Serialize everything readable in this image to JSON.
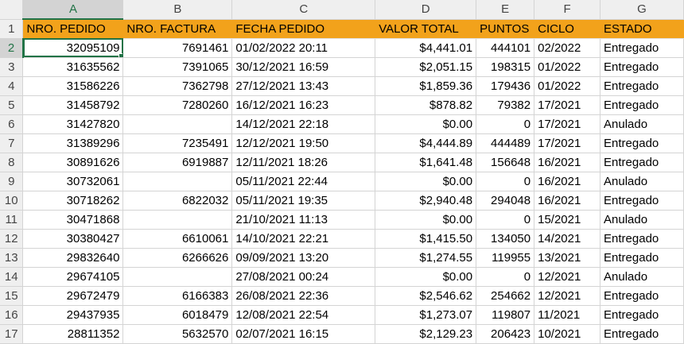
{
  "columns": [
    "A",
    "B",
    "C",
    "D",
    "E",
    "F",
    "G"
  ],
  "header_row": {
    "row_number": "1",
    "cells": [
      "NRO. PEDIDO",
      "NRO. FACTURA",
      "FECHA PEDIDO",
      "VALOR TOTAL",
      "PUNTOS",
      "CICLO",
      "ESTADO"
    ]
  },
  "rows": [
    {
      "n": "2",
      "pedido": "32095109",
      "factura": "7691461",
      "fecha": "01/02/2022 20:11",
      "valor": "$4,441.01",
      "puntos": "444101",
      "ciclo": "02/2022",
      "estado": "Entregado"
    },
    {
      "n": "3",
      "pedido": "31635562",
      "factura": "7391065",
      "fecha": "30/12/2021 16:59",
      "valor": "$2,051.15",
      "puntos": "198315",
      "ciclo": "01/2022",
      "estado": "Entregado"
    },
    {
      "n": "4",
      "pedido": "31586226",
      "factura": "7362798",
      "fecha": "27/12/2021 13:43",
      "valor": "$1,859.36",
      "puntos": "179436",
      "ciclo": "01/2022",
      "estado": "Entregado"
    },
    {
      "n": "5",
      "pedido": "31458792",
      "factura": "7280260",
      "fecha": "16/12/2021 16:23",
      "valor": "$878.82",
      "puntos": "79382",
      "ciclo": "17/2021",
      "estado": "Entregado"
    },
    {
      "n": "6",
      "pedido": "31427820",
      "factura": "",
      "fecha": "14/12/2021 22:18",
      "valor": "$0.00",
      "puntos": "0",
      "ciclo": "17/2021",
      "estado": "Anulado"
    },
    {
      "n": "7",
      "pedido": "31389296",
      "factura": "7235491",
      "fecha": "12/12/2021 19:50",
      "valor": "$4,444.89",
      "puntos": "444489",
      "ciclo": "17/2021",
      "estado": "Entregado"
    },
    {
      "n": "8",
      "pedido": "30891626",
      "factura": "6919887",
      "fecha": "12/11/2021 18:26",
      "valor": "$1,641.48",
      "puntos": "156648",
      "ciclo": "16/2021",
      "estado": "Entregado"
    },
    {
      "n": "9",
      "pedido": "30732061",
      "factura": "",
      "fecha": "05/11/2021 22:44",
      "valor": "$0.00",
      "puntos": "0",
      "ciclo": "16/2021",
      "estado": "Anulado"
    },
    {
      "n": "10",
      "pedido": "30718262",
      "factura": "6822032",
      "fecha": "05/11/2021 19:35",
      "valor": "$2,940.48",
      "puntos": "294048",
      "ciclo": "16/2021",
      "estado": "Entregado"
    },
    {
      "n": "11",
      "pedido": "30471868",
      "factura": "",
      "fecha": "21/10/2021 11:13",
      "valor": "$0.00",
      "puntos": "0",
      "ciclo": "15/2021",
      "estado": "Anulado"
    },
    {
      "n": "12",
      "pedido": "30380427",
      "factura": "6610061",
      "fecha": "14/10/2021 22:21",
      "valor": "$1,415.50",
      "puntos": "134050",
      "ciclo": "14/2021",
      "estado": "Entregado"
    },
    {
      "n": "13",
      "pedido": "29832640",
      "factura": "6266626",
      "fecha": "09/09/2021 13:20",
      "valor": "$1,274.55",
      "puntos": "119955",
      "ciclo": "13/2021",
      "estado": "Entregado"
    },
    {
      "n": "14",
      "pedido": "29674105",
      "factura": "",
      "fecha": "27/08/2021 00:24",
      "valor": "$0.00",
      "puntos": "0",
      "ciclo": "12/2021",
      "estado": "Anulado"
    },
    {
      "n": "15",
      "pedido": "29672479",
      "factura": "6166383",
      "fecha": "26/08/2021 22:36",
      "valor": "$2,546.62",
      "puntos": "254662",
      "ciclo": "12/2021",
      "estado": "Entregado"
    },
    {
      "n": "16",
      "pedido": "29437935",
      "factura": "6018479",
      "fecha": "12/08/2021 22:54",
      "valor": "$1,273.07",
      "puntos": "119807",
      "ciclo": "11/2021",
      "estado": "Entregado"
    },
    {
      "n": "17",
      "pedido": "28811352",
      "factura": "5632570",
      "fecha": "02/07/2021 16:15",
      "valor": "$2,129.23",
      "puntos": "206423",
      "ciclo": "10/2021",
      "estado": "Entregado"
    }
  ],
  "active_cell": "A2",
  "colors": {
    "header_fill": "#f2a21b",
    "selection": "#217346",
    "heading_bg": "#efefef"
  }
}
